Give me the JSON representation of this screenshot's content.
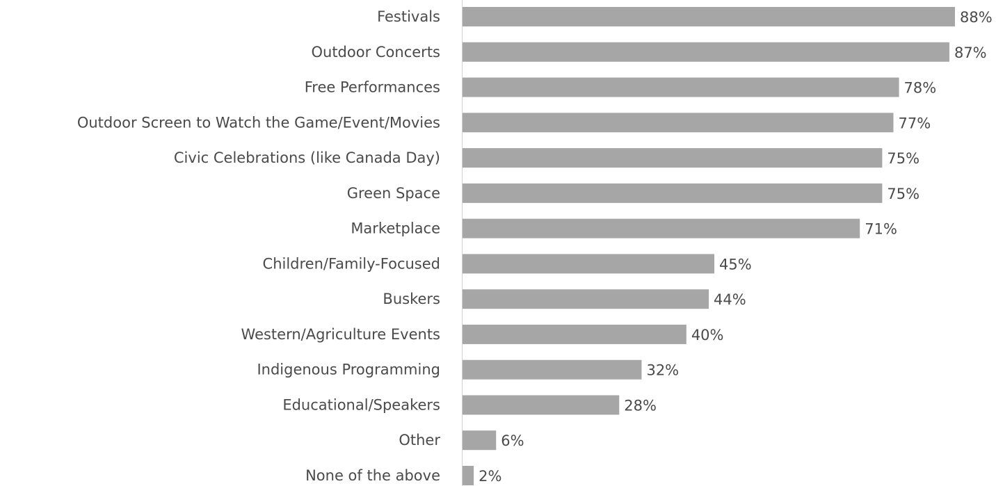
{
  "chart_data": {
    "type": "bar",
    "orientation": "horizontal",
    "categories": [
      "Festivals",
      "Outdoor Concerts",
      "Free Performances",
      "Outdoor Screen to Watch the Game/Event/Movies",
      "Civic Celebrations (like Canada Day)",
      "Green Space",
      "Marketplace",
      "Children/Family-Focused",
      "Buskers",
      "Western/Agriculture Events",
      "Indigenous Programming",
      "Educational/Speakers",
      "Other",
      "None of the above"
    ],
    "values": [
      88,
      87,
      78,
      77,
      75,
      75,
      71,
      45,
      44,
      40,
      32,
      28,
      6,
      2
    ],
    "value_labels": [
      "88%",
      "87%",
      "78%",
      "77%",
      "75%",
      "75%",
      "71%",
      "45%",
      "44%",
      "40%",
      "32%",
      "28%",
      "6%",
      "2%"
    ],
    "color": "#a6a6a6"
  }
}
